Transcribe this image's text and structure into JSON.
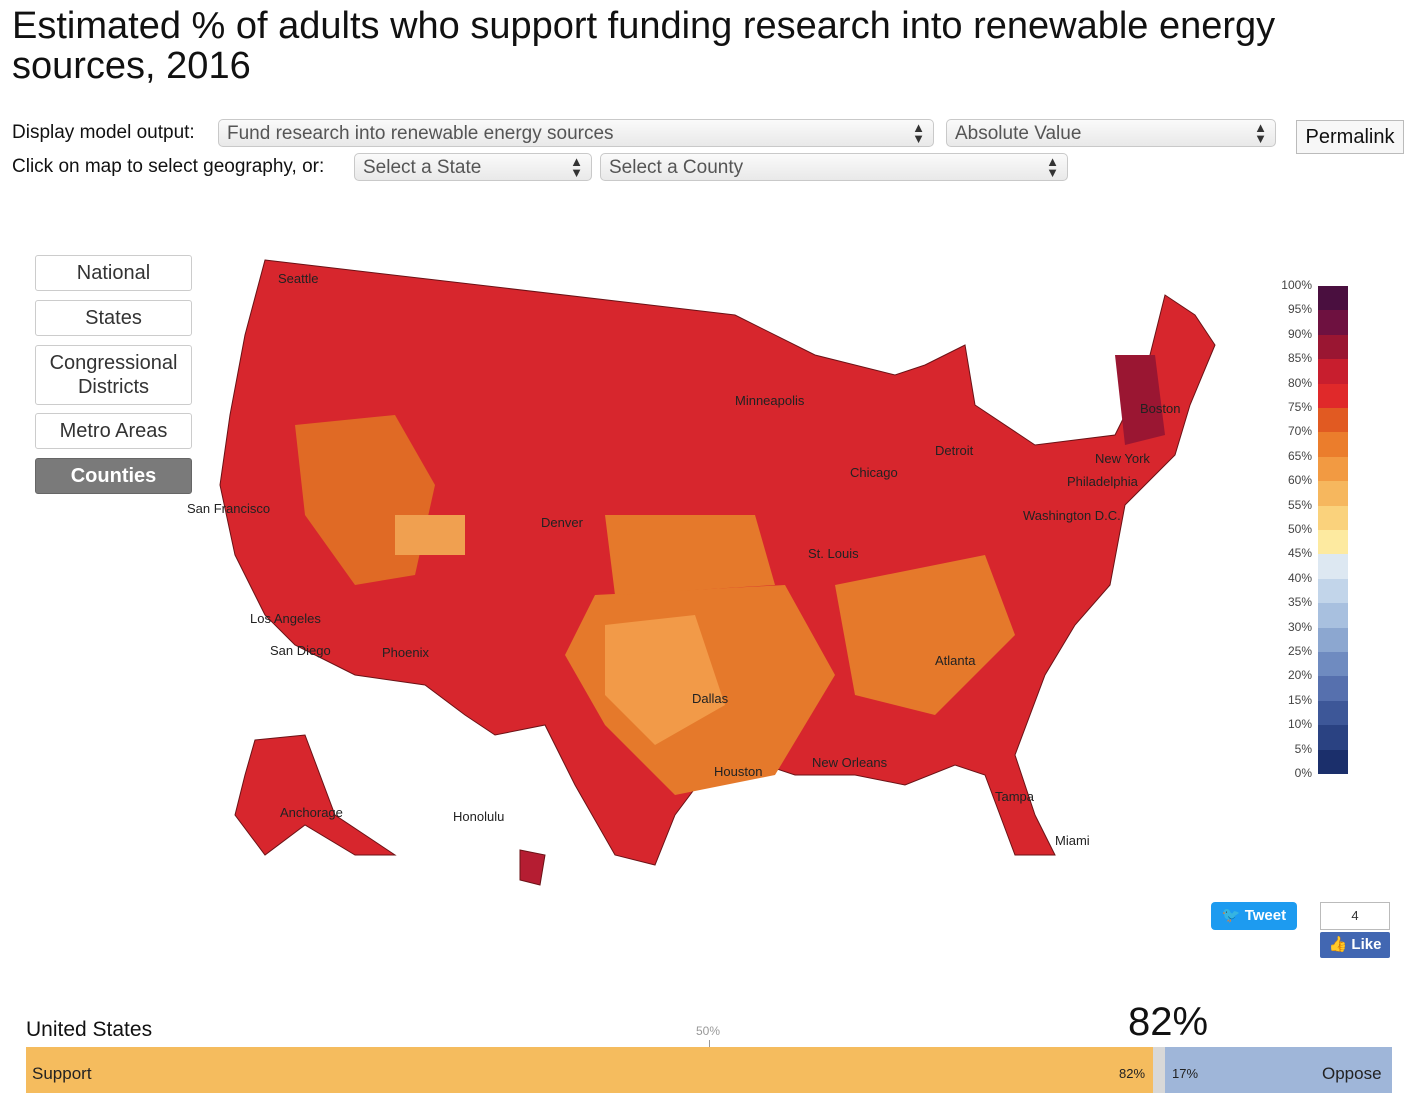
{
  "title": "Estimated % of adults who support funding research into renewable energy sources, 2016",
  "controls": {
    "display_label": "Display model output:",
    "model_output": "Fund research into renewable energy sources",
    "measure": "Absolute Value",
    "permalink": "Permalink",
    "geo_label": "Click on map to select geography, or:",
    "state_placeholder": "Select a State",
    "county_placeholder": "Select a County"
  },
  "geo_buttons": [
    "National",
    "States",
    "Congressional Districts",
    "Metro Areas",
    "Counties"
  ],
  "active_geo": "Counties",
  "cities": [
    "Seattle",
    "San Francisco",
    "Los Angeles",
    "San Diego",
    "Phoenix",
    "Denver",
    "Minneapolis",
    "Chicago",
    "Detroit",
    "St. Louis",
    "Dallas",
    "Houston",
    "New Orleans",
    "Atlanta",
    "Tampa",
    "Miami",
    "Washington D.C.",
    "Philadelphia",
    "New York",
    "Boston",
    "Anchorage",
    "Honolulu"
  ],
  "legend": {
    "ticks": [
      "100%",
      "95%",
      "90%",
      "85%",
      "80%",
      "75%",
      "70%",
      "65%",
      "60%",
      "55%",
      "50%",
      "45%",
      "40%",
      "35%",
      "30%",
      "25%",
      "20%",
      "15%",
      "10%",
      "5%",
      "0%"
    ],
    "colors": [
      "#4a0f3f",
      "#6e1140",
      "#9a1632",
      "#c81e2e",
      "#e0292a",
      "#e15a22",
      "#eb7d2c",
      "#f29a42",
      "#f6b75e",
      "#fad27c",
      "#fdeaa0",
      "#dde8f2",
      "#c2d5ea",
      "#a8c0df",
      "#8ca7d0",
      "#6f8bc0",
      "#5670ae",
      "#3d5798",
      "#2a4282",
      "#1b2f6b",
      "#0f1f55"
    ]
  },
  "social": {
    "tweet": "Tweet",
    "like_count": "4",
    "like": "Like"
  },
  "summary": {
    "region": "United States",
    "big_pct": "82%",
    "midpoint": "50%",
    "support_label": "Support",
    "support_pct": "82%",
    "oppose_pct": "17%",
    "oppose_label": "Oppose",
    "support_value": 82,
    "oppose_value": 17
  }
}
